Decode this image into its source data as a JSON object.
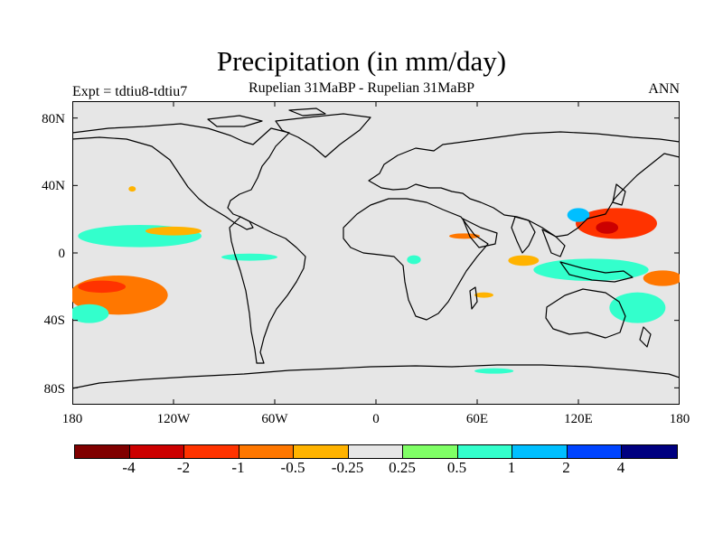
{
  "title": "Precipitation (in mm/day)",
  "subtitle": "Rupelian  31MaBP - Rupelian  31MaBP",
  "experiment_label": "Expt = tdtiu8-tdtiu7",
  "season_label": "ANN",
  "lat_ticks": [
    "80N",
    "40N",
    "0",
    "40S",
    "80S"
  ],
  "lon_ticks": [
    "180",
    "120W",
    "60W",
    "0",
    "60E",
    "120E",
    "180"
  ],
  "colorbar": {
    "colors": [
      "#800000",
      "#cc0000",
      "#ff3300",
      "#ff7700",
      "#ffb300",
      "#e6e6e6",
      "#80ff66",
      "#33ffcc",
      "#00bfff",
      "#0044ff",
      "#000080"
    ],
    "labels": [
      "-4",
      "-2",
      "-1",
      "-0.5",
      "-0.25",
      "0.25",
      "0.5",
      "1",
      "2",
      "4"
    ]
  },
  "chart_data": {
    "type": "heatmap",
    "title": "Precipitation (in mm/day)",
    "subtitle": "Rupelian  31MaBP - Rupelian  31MaBP",
    "units": "mm/day",
    "xlim": [
      -180,
      180
    ],
    "ylim": [
      -90,
      90
    ],
    "levels": [
      -4,
      -2,
      -1,
      -0.5,
      -0.25,
      0.25,
      0.5,
      1,
      2,
      4
    ],
    "anomaly_regions": [
      {
        "name": "north-pacific-blob",
        "lon": [
          -145,
          -144
        ],
        "lat": [
          38,
          38
        ],
        "level": -0.5
      },
      {
        "name": "east-pacific-itcz-green",
        "lon": [
          -175,
          -105
        ],
        "lat": [
          5,
          15
        ],
        "level": 0.5
      },
      {
        "name": "east-pacific-itcz-orange",
        "lon": [
          -135,
          -105
        ],
        "lat": [
          12,
          14
        ],
        "level": -0.5
      },
      {
        "name": "south-pacific-orange",
        "lon": [
          -180,
          -125
        ],
        "lat": [
          -35,
          -15
        ],
        "level": -1
      },
      {
        "name": "south-pacific-red-core",
        "lon": [
          -175,
          -150
        ],
        "lat": [
          -22,
          -18
        ],
        "level": -2
      },
      {
        "name": "south-pacific-green",
        "lon": [
          -180,
          -160
        ],
        "lat": [
          -40,
          -32
        ],
        "level": 0.5
      },
      {
        "name": "tropical-atlantic-green",
        "lon": [
          -90,
          -60
        ],
        "lat": [
          -2,
          -3
        ],
        "level": 0.5
      },
      {
        "name": "africa-green",
        "lon": [
          20,
          25
        ],
        "lat": [
          -3,
          -5
        ],
        "level": 0.5
      },
      {
        "name": "somali-coast-orange",
        "lon": [
          45,
          60
        ],
        "lat": [
          10,
          10
        ],
        "level": -1
      },
      {
        "name": "indian-ocean-orange",
        "lon": [
          80,
          95
        ],
        "lat": [
          -6,
          -3
        ],
        "level": -0.5
      },
      {
        "name": "madagascar-orange",
        "lon": [
          60,
          68
        ],
        "lat": [
          -25,
          -25
        ],
        "level": -0.5
      },
      {
        "name": "maritime-continent-green",
        "lon": [
          95,
          160
        ],
        "lat": [
          -15,
          -5
        ],
        "level": 0.5
      },
      {
        "name": "west-pacific-warm-pool-red",
        "lon": [
          120,
          165
        ],
        "lat": [
          10,
          25
        ],
        "level": -2
      },
      {
        "name": "west-pacific-darkred-core",
        "lon": [
          132,
          142
        ],
        "lat": [
          13,
          17
        ],
        "level": -4
      },
      {
        "name": "china-cyan",
        "lon": [
          115,
          125
        ],
        "lat": [
          20,
          25
        ],
        "level": 1
      },
      {
        "name": "south-west-pacific-red",
        "lon": [
          160,
          180
        ],
        "lat": [
          -18,
          -12
        ],
        "level": -1
      },
      {
        "name": "australia-green",
        "lon": [
          140,
          170
        ],
        "lat": [
          -40,
          -25
        ],
        "level": 0.5
      },
      {
        "name": "southern-ocean-green",
        "lon": [
          60,
          80
        ],
        "lat": [
          -70,
          -70
        ],
        "level": 0.5
      }
    ]
  }
}
